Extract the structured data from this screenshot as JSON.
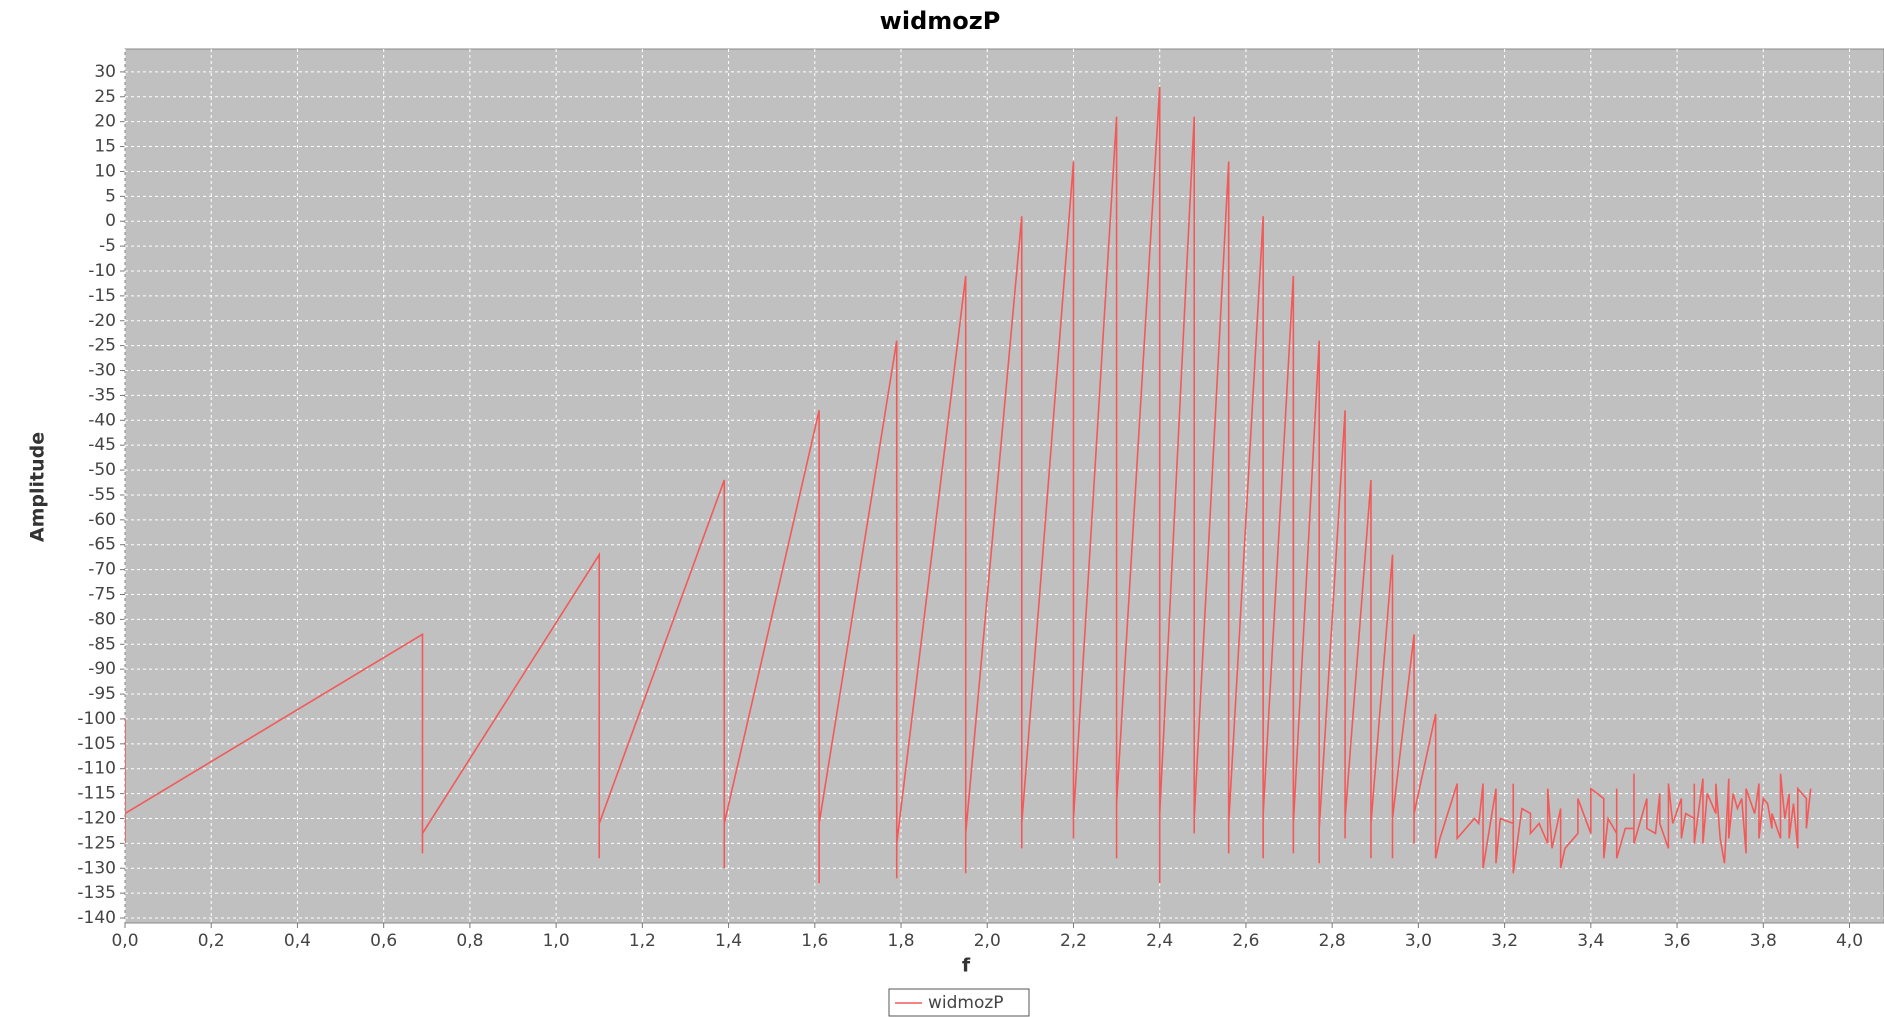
{
  "chart_data": {
    "type": "line",
    "title": "widmozP",
    "x_label": "f",
    "y_label": "Amplitude",
    "xlim": [
      0,
      4.08
    ],
    "ylim": [
      -141,
      34.6
    ],
    "grid": true,
    "legend": "bottom",
    "xticks": [
      {
        "value": 0,
        "label": "0,0"
      },
      {
        "value": 0.2,
        "label": "0,2"
      },
      {
        "value": 0.4,
        "label": "0,4"
      },
      {
        "value": 0.6,
        "label": "0,6"
      },
      {
        "value": 0.8,
        "label": "0,8"
      },
      {
        "value": 1.0,
        "label": "1,0"
      },
      {
        "value": 1.2,
        "label": "1,2"
      },
      {
        "value": 1.4,
        "label": "1,4"
      },
      {
        "value": 1.6,
        "label": "1,6"
      },
      {
        "value": 1.8,
        "label": "1,8"
      },
      {
        "value": 2.0,
        "label": "2,0"
      },
      {
        "value": 2.2,
        "label": "2,2"
      },
      {
        "value": 2.4,
        "label": "2,4"
      },
      {
        "value": 2.6,
        "label": "2,6"
      },
      {
        "value": 2.8,
        "label": "2,8"
      },
      {
        "value": 3.0,
        "label": "3,0"
      },
      {
        "value": 3.2,
        "label": "3,2"
      },
      {
        "value": 3.4,
        "label": "3,4"
      },
      {
        "value": 3.6,
        "label": "3,6"
      },
      {
        "value": 3.8,
        "label": "3,8"
      },
      {
        "value": 4.0,
        "label": "4,0"
      }
    ],
    "yticks": [
      30,
      25,
      20,
      15,
      10,
      5,
      0,
      -5,
      -10,
      -15,
      -20,
      -25,
      -30,
      -35,
      -40,
      -45,
      -50,
      -55,
      -60,
      -65,
      -70,
      -75,
      -80,
      -85,
      -90,
      -95,
      -100,
      -105,
      -110,
      -115,
      -120,
      -125,
      -130,
      -135,
      -140
    ],
    "x": [
      0,
      0,
      0,
      0.69,
      0.69,
      0.69,
      1.1,
      1.1,
      1.1,
      1.39,
      1.39,
      1.39,
      1.61,
      1.61,
      1.61,
      1.79,
      1.79,
      1.79,
      1.95,
      1.95,
      1.95,
      2.08,
      2.08,
      2.08,
      2.2,
      2.2,
      2.2,
      2.3,
      2.3,
      2.3,
      2.4,
      2.4,
      2.4,
      2.48,
      2.48,
      2.48,
      2.56,
      2.56,
      2.56,
      2.64,
      2.64,
      2.64,
      2.71,
      2.71,
      2.71,
      2.77,
      2.77,
      2.77,
      2.83,
      2.83,
      2.83,
      2.89,
      2.89,
      2.89,
      2.94,
      2.94,
      2.94,
      2.99,
      2.99,
      2.99,
      3.04,
      3.04,
      3.05,
      3.09,
      3.09,
      3.13,
      3.14,
      3.15,
      3.15,
      3.18,
      3.18,
      3.19,
      3.22,
      3.22,
      3.22,
      3.24,
      3.26,
      3.26,
      3.28,
      3.3,
      3.3,
      3.31,
      3.33,
      3.33,
      3.34,
      3.37,
      3.37,
      3.4,
      3.4,
      3.43,
      3.43,
      3.44,
      3.46,
      3.46,
      3.46,
      3.48,
      3.5,
      3.5,
      3.5,
      3.52,
      3.53,
      3.53,
      3.55,
      3.56,
      3.56,
      3.58,
      3.58,
      3.59,
      3.61,
      3.61,
      3.62,
      3.64,
      3.64,
      3.64,
      3.66,
      3.66,
      3.67,
      3.69,
      3.69,
      3.7,
      3.71,
      3.72,
      3.72,
      3.73,
      3.74,
      3.75,
      3.76,
      3.76,
      3.78,
      3.79,
      3.79,
      3.8,
      3.81,
      3.82,
      3.82,
      3.84,
      3.84,
      3.85,
      3.86,
      3.86,
      3.87,
      3.88,
      3.88,
      3.9,
      3.9,
      3.91
    ],
    "series": [
      {
        "name": "widmozP",
        "color": "#f25a5a",
        "values": [
          -100,
          -125,
          -119,
          -83,
          -127,
          -123,
          -67,
          -128,
          -121,
          -52,
          -130,
          -121,
          -38,
          -133,
          -121,
          -24,
          -132,
          -125,
          -11,
          -131,
          -123,
          1,
          -126,
          -121,
          12,
          -124,
          -120,
          21,
          -128,
          -117,
          27,
          -133,
          -119,
          21,
          -123,
          -120,
          12,
          -127,
          -121,
          1,
          -128,
          -119,
          -11,
          -127,
          -121,
          -24,
          -129,
          -122,
          -38,
          -124,
          -120,
          -52,
          -128,
          -121,
          -67,
          -128,
          -120,
          -83,
          -125,
          -119,
          -99,
          -128,
          -124,
          -113,
          -124,
          -120,
          -121,
          -113,
          -130,
          -114,
          -129,
          -120,
          -121,
          -113,
          -131,
          -118,
          -119,
          -123,
          -121,
          -125,
          -114,
          -126,
          -118,
          -130,
          -126,
          -123,
          -116,
          -123,
          -114,
          -116,
          -128,
          -120,
          -123,
          -114,
          -128,
          -122,
          -122,
          -111,
          -125,
          -119,
          -116,
          -122,
          -123,
          -115,
          -121,
          -126,
          -113,
          -121,
          -116,
          -124,
          -119,
          -120,
          -113,
          -125,
          -112,
          -125,
          -115,
          -119,
          -113,
          -124,
          -129,
          -112,
          -124,
          -115,
          -118,
          -116,
          -127,
          -114,
          -119,
          -113,
          -124,
          -116,
          -117,
          -122,
          -119,
          -124,
          -111,
          -120,
          -115,
          -124,
          -117,
          -126,
          -114,
          -116,
          -122,
          -114
        ]
      }
    ]
  }
}
